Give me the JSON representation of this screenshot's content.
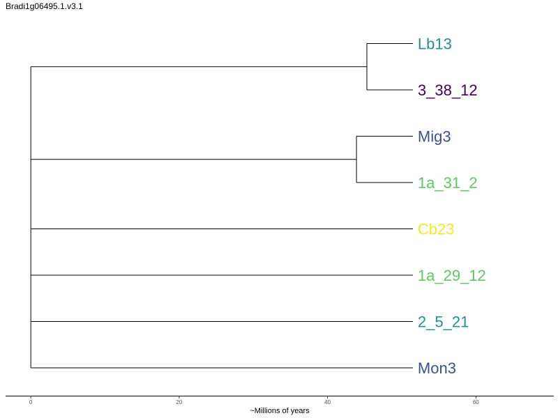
{
  "title": "Bradi1g06495.1.v3.1",
  "xlabel": "~Millions of years",
  "x_ticks": [
    0,
    20,
    40,
    60
  ],
  "xlim": [
    -3.4,
    70.5
  ],
  "tips": [
    {
      "label": "Lb13",
      "color": "#21918c"
    },
    {
      "label": "3_38_12",
      "color": "#440154"
    },
    {
      "label": "Mig3",
      "color": "#3b528b"
    },
    {
      "label": "1a_31_2",
      "color": "#5ec962"
    },
    {
      "label": "Cb23",
      "color": "#fde725"
    },
    {
      "label": "1a_29_12",
      "color": "#5ec962"
    },
    {
      "label": "2_5_21",
      "color": "#21918c"
    },
    {
      "label": "Mon3",
      "color": "#3b528b"
    }
  ],
  "tree_age": 51.5,
  "clades": [
    {
      "node_time": 45.3,
      "tips": [
        0,
        1
      ]
    },
    {
      "node_time": 43.9,
      "tips": [
        2,
        3
      ]
    }
  ],
  "singletons": [
    4,
    5,
    6,
    7
  ]
}
